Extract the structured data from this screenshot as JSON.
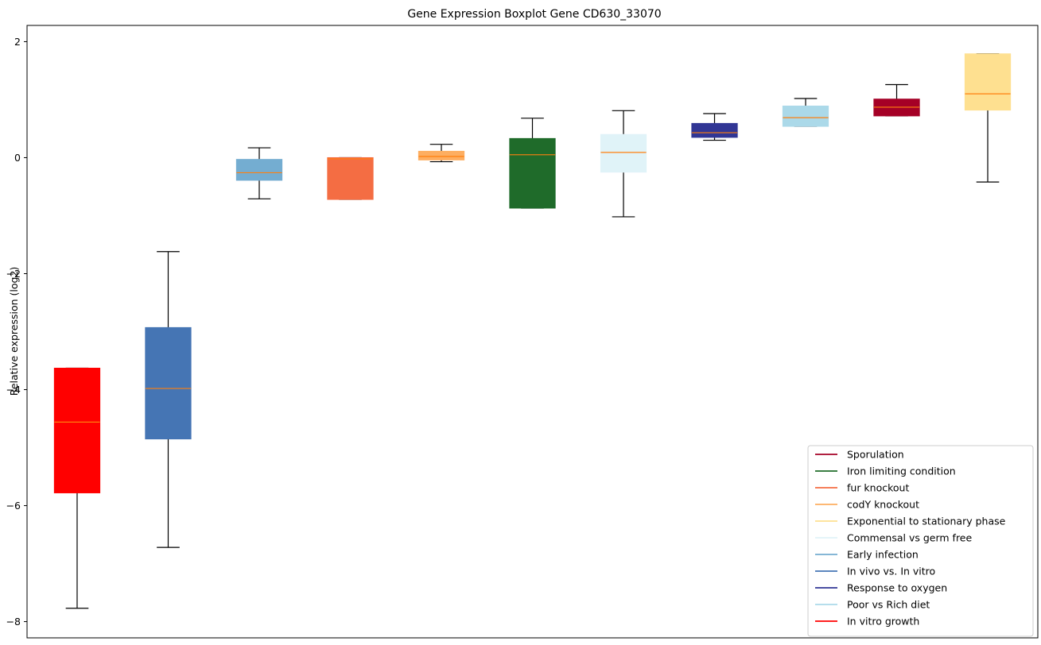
{
  "chart_data": {
    "type": "box",
    "title": "Gene Expression Boxplot Gene CD630_33070",
    "xlabel": "",
    "ylabel": "Relative expression (log2)",
    "ylim": [
      -8.28,
      2.28
    ],
    "yticks": [
      -8,
      -6,
      -4,
      -2,
      0,
      2
    ],
    "ytick_labels": [
      "−8",
      "−6",
      "−4",
      "−2",
      "0",
      "2"
    ],
    "grid": false,
    "legend_position": "lower-right",
    "median_color": "#ff7f0e",
    "boxes": [
      {
        "group": "In vitro growth",
        "color": "#ff0000",
        "whislo": -7.77,
        "q1": -5.78,
        "med": -4.56,
        "q3": -3.63,
        "whishi": -3.63
      },
      {
        "group": "In vivo vs. In vitro",
        "color": "#4575b4",
        "whislo": -6.72,
        "q1": -4.85,
        "med": -3.98,
        "q3": -2.93,
        "whishi": -1.62
      },
      {
        "group": "Early infection",
        "color": "#74add1",
        "whislo": -0.71,
        "q1": -0.39,
        "med": -0.26,
        "q3": -0.03,
        "whishi": 0.17
      },
      {
        "group": "fur knockout",
        "color": "#f46d43",
        "whislo": -0.72,
        "q1": -0.72,
        "med": -0.02,
        "q3": 0.0,
        "whishi": 0.0
      },
      {
        "group": "codY knockout",
        "color": "#fdae61",
        "whislo": -0.07,
        "q1": -0.04,
        "med": 0.02,
        "q3": 0.11,
        "whishi": 0.23
      },
      {
        "group": "Iron limiting condition",
        "color": "#1f6b2a",
        "whislo": -0.87,
        "q1": -0.87,
        "med": 0.05,
        "q3": 0.33,
        "whishi": 0.68
      },
      {
        "group": "Commensal vs germ free",
        "color": "#e0f3f8",
        "whislo": -1.02,
        "q1": -0.25,
        "med": 0.09,
        "q3": 0.4,
        "whishi": 0.81
      },
      {
        "group": "Response to oxygen",
        "color": "#313695",
        "whislo": 0.3,
        "q1": 0.35,
        "med": 0.43,
        "q3": 0.59,
        "whishi": 0.76
      },
      {
        "group": "Poor vs Rich diet",
        "color": "#abd9e9",
        "whislo": 0.54,
        "q1": 0.54,
        "med": 0.69,
        "q3": 0.89,
        "whishi": 1.02
      },
      {
        "group": "Sporulation",
        "color": "#a50026",
        "whislo": 0.72,
        "q1": 0.72,
        "med": 0.87,
        "q3": 1.01,
        "whishi": 1.26
      },
      {
        "group": "Exponential to stationary phase",
        "color": "#fee090",
        "whislo": -0.42,
        "q1": 0.82,
        "med": 1.1,
        "q3": 1.79,
        "whishi": 1.79
      }
    ],
    "legend": [
      {
        "label": "Sporulation",
        "color": "#a50026"
      },
      {
        "label": "Iron limiting condition",
        "color": "#1f6b2a"
      },
      {
        "label": "fur knockout",
        "color": "#f46d43"
      },
      {
        "label": "codY knockout",
        "color": "#fdae61"
      },
      {
        "label": "Exponential to stationary phase",
        "color": "#fee090"
      },
      {
        "label": "Commensal vs germ free",
        "color": "#e0f3f8"
      },
      {
        "label": "Early infection",
        "color": "#74add1"
      },
      {
        "label": "In vivo vs. In vitro",
        "color": "#4575b4"
      },
      {
        "label": "Response to oxygen",
        "color": "#313695"
      },
      {
        "label": "Poor vs Rich diet",
        "color": "#abd9e9"
      },
      {
        "label": "In vitro growth",
        "color": "#ff0000"
      }
    ]
  }
}
